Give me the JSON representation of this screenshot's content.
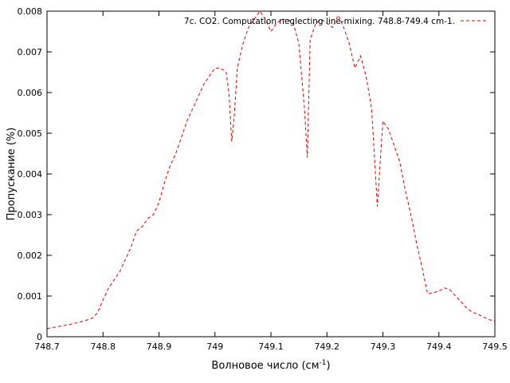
{
  "chart_data": {
    "type": "line",
    "title": "",
    "xlabel": "Волновое число (см",
    "xlabel_sup": "-1",
    "xlabel_close": ")",
    "ylabel": "Пропускание (%)",
    "xlim": [
      748.7,
      749.5
    ],
    "ylim": [
      0,
      0.008
    ],
    "x_ticks": [
      "748.7",
      "748.8",
      "748.9",
      "749",
      "749.1",
      "749.2",
      "749.3",
      "749.4",
      "749.5"
    ],
    "y_ticks": [
      "0",
      "0.001",
      "0.002",
      "0.003",
      "0.004",
      "0.005",
      "0.006",
      "0.007",
      "0.008"
    ],
    "grid": false,
    "legend_position": "top-right",
    "series_color": "#e00000",
    "series": [
      {
        "name": "7c. CO2. Computation neglecting line-mixing. 748.8-749.4 cm-1.",
        "x": [
          748.7,
          748.72,
          748.74,
          748.76,
          748.78,
          748.79,
          748.8,
          748.81,
          748.82,
          748.83,
          748.84,
          748.85,
          748.86,
          748.87,
          748.88,
          748.89,
          748.9,
          748.91,
          748.92,
          748.93,
          748.94,
          748.95,
          748.96,
          748.97,
          748.98,
          748.99,
          749.0,
          749.01,
          749.02,
          749.025,
          749.03,
          749.035,
          749.04,
          749.05,
          749.06,
          749.07,
          749.08,
          749.09,
          749.1,
          749.11,
          749.12,
          749.13,
          749.14,
          749.15,
          749.16,
          749.165,
          749.17,
          749.18,
          749.19,
          749.2,
          749.21,
          749.22,
          749.23,
          749.24,
          749.25,
          749.26,
          749.27,
          749.28,
          749.285,
          749.29,
          749.3,
          749.31,
          749.32,
          749.33,
          749.34,
          749.35,
          749.36,
          749.37,
          749.38,
          749.39,
          749.4,
          749.41,
          749.42,
          749.43,
          749.44,
          749.45,
          749.46,
          749.47,
          749.48,
          749.49,
          749.5
        ],
        "y": [
          0.0002,
          0.00025,
          0.0003,
          0.00036,
          0.00045,
          0.00058,
          0.0009,
          0.0012,
          0.0014,
          0.0016,
          0.0019,
          0.0022,
          0.0026,
          0.0027,
          0.0029,
          0.003,
          0.0033,
          0.0038,
          0.0042,
          0.0045,
          0.0049,
          0.0053,
          0.0056,
          0.0059,
          0.0062,
          0.0064,
          0.0066,
          0.0066,
          0.0065,
          0.006,
          0.0048,
          0.0055,
          0.0066,
          0.0072,
          0.0076,
          0.0078,
          0.008,
          0.0078,
          0.0075,
          0.0077,
          0.0078,
          0.0078,
          0.0077,
          0.0072,
          0.0056,
          0.0044,
          0.0073,
          0.0077,
          0.0078,
          0.0077,
          0.0076,
          0.0079,
          0.0076,
          0.0072,
          0.0066,
          0.0069,
          0.0064,
          0.0056,
          0.0044,
          0.0032,
          0.0053,
          0.0051,
          0.0047,
          0.0043,
          0.0036,
          0.003,
          0.0023,
          0.0017,
          0.00105,
          0.00108,
          0.00112,
          0.0012,
          0.00115,
          0.001,
          0.00085,
          0.0007,
          0.0006,
          0.00055,
          0.00048,
          0.00042,
          0.00038
        ]
      }
    ]
  }
}
